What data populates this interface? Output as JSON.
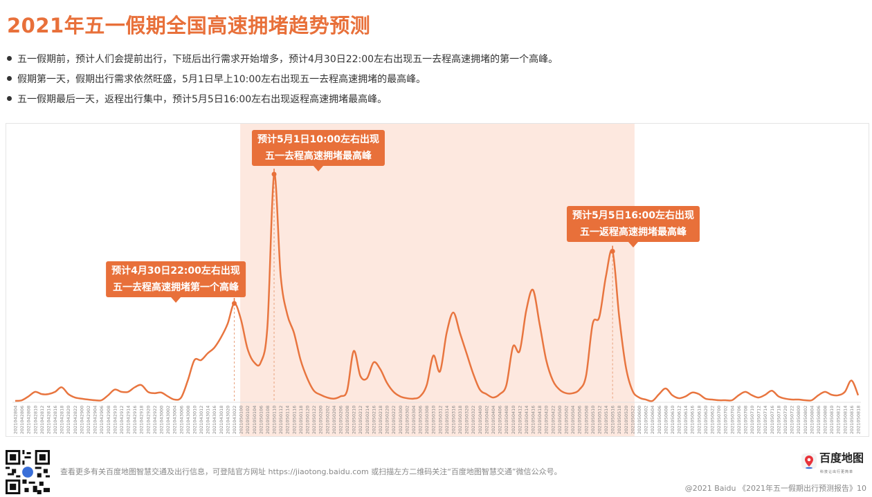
{
  "title": "2021年五一假期全国高速拥堵趋势预测",
  "bullets": [
    "五一假期前，预计人们会提前出行，下班后出行需求开始增多，预计4月30日22:00左右出现五一去程高速拥堵的第一个高峰。",
    "假期第一天，假期出行需求依然旺盛，5月1日早上10:00左右出现五一去程高速拥堵的最高峰。",
    "五一假期最后一天，返程出行集中，预计5月5日16:00左右出现返程高速拥堵最高峰。"
  ],
  "colors": {
    "accent": "#e8703a",
    "line": "#e8753f",
    "holiday_shade": "#fde8df",
    "text": "#333333"
  },
  "chart_data": {
    "type": "line",
    "title": "",
    "xlabel": "",
    "ylabel": "",
    "y_axis_shown": false,
    "grid": false,
    "categories": [
      "2021042804",
      "2021042806",
      "2021042808",
      "2021042810",
      "2021042812",
      "2021042814",
      "2021042816",
      "2021042818",
      "2021042820",
      "2021042822",
      "2021042900",
      "2021042902",
      "2021042904",
      "2021042906",
      "2021042908",
      "2021042910",
      "2021042912",
      "2021042914",
      "2021042916",
      "2021042918",
      "2021042920",
      "2021042922",
      "2021043000",
      "2021043002",
      "2021043004",
      "2021043006",
      "2021043008",
      "2021043010",
      "2021043012",
      "2021043014",
      "2021043016",
      "2021043018",
      "2021043020",
      "2021043022",
      "2021050100",
      "2021050102",
      "2021050104",
      "2021050106",
      "2021050108",
      "2021050110",
      "2021050112",
      "2021050114",
      "2021050116",
      "2021050118",
      "2021050120",
      "2021050122",
      "2021050200",
      "2021050202",
      "2021050204",
      "2021050206",
      "2021050208",
      "2021050210",
      "2021050212",
      "2021050214",
      "2021050216",
      "2021050218",
      "2021050220",
      "2021050222",
      "2021050300",
      "2021050302",
      "2021050304",
      "2021050306",
      "2021050308",
      "2021050310",
      "2021050312",
      "2021050314",
      "2021050316",
      "2021050318",
      "2021050320",
      "2021050322",
      "2021050400",
      "2021050402",
      "2021050404",
      "2021050406",
      "2021050408",
      "2021050410",
      "2021050412",
      "2021050414",
      "2021050416",
      "2021050418",
      "2021050420",
      "2021050422",
      "2021050500",
      "2021050502",
      "2021050504",
      "2021050506",
      "2021050508",
      "2021050510",
      "2021050512",
      "2021050514",
      "2021050516",
      "2021050518",
      "2021050520",
      "2021050522",
      "2021050600",
      "2021050602",
      "2021050604",
      "2021050606",
      "2021050608",
      "2021050610",
      "2021050612",
      "2021050614",
      "2021050616",
      "2021050618",
      "2021050620",
      "2021050622",
      "2021050700",
      "2021050702",
      "2021050704",
      "2021050706",
      "2021050708",
      "2021050710",
      "2021050712",
      "2021050714",
      "2021050716",
      "2021050718",
      "2021050720",
      "2021050722",
      "2021050800",
      "2021050802",
      "2021050804",
      "2021050806",
      "2021050808",
      "2021050810",
      "2021050812",
      "2021050814",
      "2021050816",
      "2021050818"
    ],
    "series": [
      {
        "values": [
          0,
          0.3,
          2,
          4,
          3,
          3,
          4,
          6,
          3,
          1.5,
          1,
          0.6,
          0.3,
          0.3,
          2.5,
          5,
          4,
          4,
          6,
          7,
          4,
          3.4,
          3.7,
          2,
          0.6,
          1.5,
          9,
          18,
          18,
          21,
          23.5,
          28,
          34,
          43,
          36,
          23,
          17,
          17,
          33,
          100,
          55,
          38,
          30,
          18,
          10,
          4.5,
          2.7,
          1.5,
          1,
          2,
          4.5,
          22,
          11,
          10,
          17,
          14,
          8,
          4,
          2,
          1.2,
          1,
          2,
          7,
          20,
          13,
          30,
          39,
          30,
          21,
          12,
          5,
          3,
          1.5,
          3,
          7,
          24,
          22,
          40,
          49,
          34,
          18,
          9,
          5,
          3.4,
          3.4,
          5,
          11,
          34,
          37,
          55,
          66,
          37,
          15,
          4.5,
          1.5,
          0.6,
          0,
          3,
          5.5,
          2.5,
          1.2,
          2,
          3.7,
          3,
          1,
          0.6,
          0.3,
          0.3,
          0.3,
          2.5,
          4,
          2.5,
          1.5,
          2.7,
          4.5,
          2,
          1,
          0.6,
          0.6,
          0.3,
          0.3,
          2.5,
          4,
          2.7,
          2.5,
          4,
          9,
          2.5
        ]
      }
    ],
    "shaded_range": [
      "2021050100",
      "2021050522"
    ],
    "annotations": [
      {
        "at": "2021043022",
        "lines": [
          "预计4月30日22:00左右出现",
          "五一去程高速拥堵第一个高峰"
        ]
      },
      {
        "at": "2021050110",
        "lines": [
          "预计5月1日10:00左右出现",
          "五一去程高速拥堵最高峰"
        ]
      },
      {
        "at": "2021050516",
        "lines": [
          "预计5月5日16:00左右出现",
          "五一返程高速拥堵最高峰"
        ]
      }
    ]
  },
  "footer": {
    "text": "查看更多有关百度地图智慧交通及出行信息，可登陆官方网址 https://jiaotong.baidu.com 或扫描左方二维码关注“百度地图智慧交通”微信公众号。",
    "copyright": "@2021 Baidu 《2021年五一假期出行预测报告》10",
    "qr_icon": "qr-code-icon",
    "logo_name": "百度地图",
    "logo_slogan": "科技让出行更简单"
  }
}
